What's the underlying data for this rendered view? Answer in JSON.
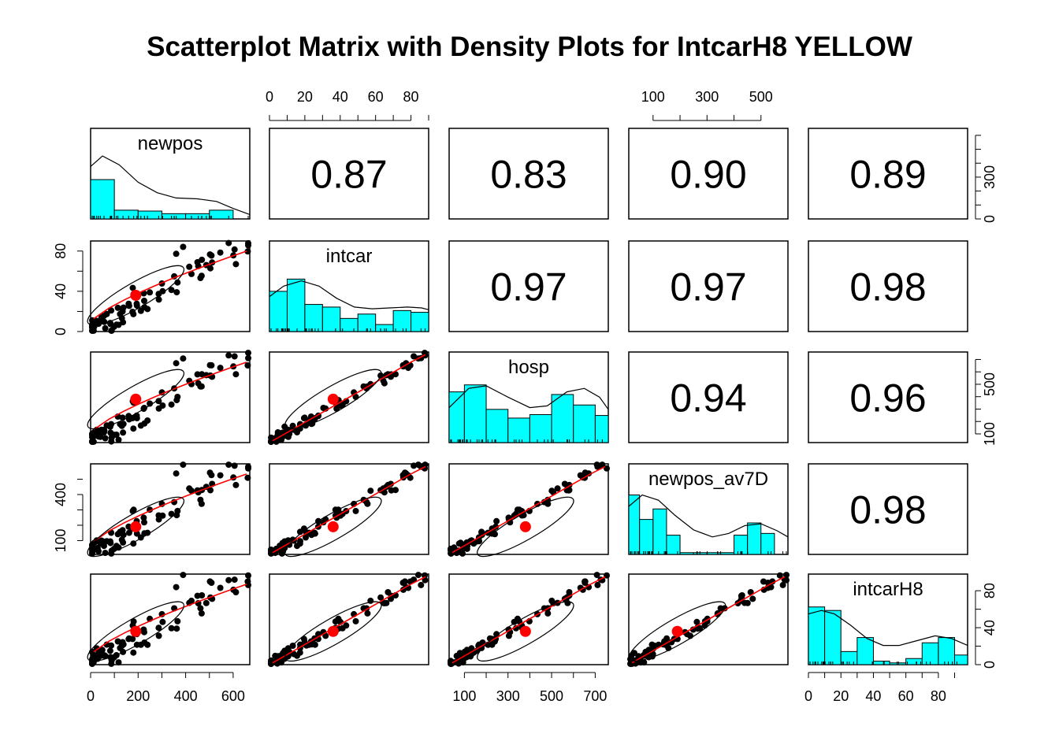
{
  "chart_data": {
    "type": "scatter",
    "title": "Scatterplot Matrix with Density Plots for IntcarH8 YELLOW",
    "variables": [
      "newpos",
      "intcar",
      "hosp",
      "newpos_av7D",
      "intcarH8"
    ],
    "ranges": {
      "newpos": [
        0,
        670
      ],
      "intcar": [
        0,
        90
      ],
      "hosp": [
        30,
        760
      ],
      "newpos_av7D": [
        10,
        600
      ],
      "intcarH8": [
        0,
        98
      ]
    },
    "axis_ticks": {
      "top": [
        {
          "column": 1,
          "variable": "intcar",
          "ticks": [
            0,
            20,
            40,
            60,
            80
          ],
          "minor": [
            10,
            30,
            50,
            70,
            90
          ]
        },
        {
          "column": 3,
          "variable": "newpos_av7D",
          "ticks": [
            100,
            300,
            500
          ],
          "minor": [
            200,
            400
          ]
        }
      ],
      "bottom": [
        {
          "column": 0,
          "variable": "newpos",
          "ticks": [
            0,
            200,
            400,
            600
          ],
          "minor": [
            100,
            300,
            500
          ]
        },
        {
          "column": 2,
          "variable": "hosp",
          "ticks": [
            100,
            300,
            500,
            700
          ],
          "minor": [
            200,
            400,
            600
          ]
        },
        {
          "column": 4,
          "variable": "intcarH8",
          "ticks": [
            0,
            20,
            40,
            60,
            80
          ],
          "minor": [
            10,
            30,
            50,
            70,
            90
          ]
        }
      ],
      "left": [
        {
          "row": 1,
          "variable": "intcar",
          "ticks": [
            0,
            40,
            80
          ],
          "minor": [
            20,
            60
          ]
        },
        {
          "row": 3,
          "variable": "newpos_av7D",
          "ticks": [
            100,
            400
          ],
          "minor": [
            200,
            300,
            500
          ]
        }
      ],
      "right": [
        {
          "row": 0,
          "variable": "newpos",
          "ticks": [
            0,
            300
          ],
          "minor": [
            100,
            200,
            400,
            500,
            600
          ],
          "hist_scale": true
        },
        {
          "row": 2,
          "variable": "hosp",
          "ticks": [
            100,
            500
          ],
          "minor": [
            200,
            300,
            400,
            600,
            700
          ]
        },
        {
          "row": 4,
          "variable": "intcarH8",
          "ticks": [
            0,
            40,
            80
          ],
          "minor": [
            20,
            60
          ]
        }
      ]
    },
    "correlations": [
      {
        "row": 0,
        "col": 1,
        "value": "0.87"
      },
      {
        "row": 0,
        "col": 2,
        "value": "0.83"
      },
      {
        "row": 0,
        "col": 3,
        "value": "0.90"
      },
      {
        "row": 0,
        "col": 4,
        "value": "0.89"
      },
      {
        "row": 1,
        "col": 2,
        "value": "0.97"
      },
      {
        "row": 1,
        "col": 3,
        "value": "0.97"
      },
      {
        "row": 1,
        "col": 4,
        "value": "0.98"
      },
      {
        "row": 2,
        "col": 3,
        "value": "0.94"
      },
      {
        "row": 2,
        "col": 4,
        "value": "0.96"
      },
      {
        "row": 3,
        "col": 4,
        "value": "0.98"
      }
    ],
    "histograms": {
      "newpos": {
        "breaks": [
          0,
          100,
          200,
          300,
          400,
          500,
          600,
          700
        ],
        "counts": [
          0.45,
          0.1,
          0.09,
          0.06,
          0.06,
          0.1,
          0.0
        ],
        "density": [
          [
            0,
            0.6
          ],
          [
            50,
            0.72
          ],
          [
            120,
            0.62
          ],
          [
            200,
            0.42
          ],
          [
            280,
            0.3
          ],
          [
            360,
            0.24
          ],
          [
            450,
            0.23
          ],
          [
            530,
            0.2
          ],
          [
            600,
            0.12
          ],
          [
            670,
            0.05
          ]
        ]
      },
      "intcar": {
        "breaks": [
          0,
          10,
          20,
          30,
          40,
          50,
          60,
          70,
          80,
          90
        ],
        "counts": [
          0.46,
          0.6,
          0.31,
          0.28,
          0.15,
          0.2,
          0.08,
          0.24,
          0.22
        ],
        "density": [
          [
            0,
            0.4
          ],
          [
            8,
            0.52
          ],
          [
            18,
            0.58
          ],
          [
            28,
            0.52
          ],
          [
            38,
            0.38
          ],
          [
            48,
            0.28
          ],
          [
            58,
            0.26
          ],
          [
            68,
            0.27
          ],
          [
            78,
            0.28
          ],
          [
            86,
            0.27
          ],
          [
            90,
            0.25
          ]
        ]
      },
      "hosp": {
        "breaks": [
          0,
          100,
          200,
          300,
          400,
          500,
          600,
          700,
          800
        ],
        "counts": [
          0.58,
          0.66,
          0.38,
          0.28,
          0.32,
          0.55,
          0.43,
          0.31
        ],
        "density": [
          [
            30,
            0.4
          ],
          [
            120,
            0.62
          ],
          [
            200,
            0.65
          ],
          [
            300,
            0.52
          ],
          [
            400,
            0.4
          ],
          [
            480,
            0.42
          ],
          [
            570,
            0.58
          ],
          [
            650,
            0.62
          ],
          [
            720,
            0.52
          ],
          [
            760,
            0.38
          ]
        ]
      },
      "newpos_av7D": {
        "breaks": [
          0,
          50,
          100,
          150,
          200,
          250,
          300,
          350,
          400,
          450,
          500,
          550,
          600
        ],
        "counts": [
          0.68,
          0.4,
          0.52,
          0.22,
          0.02,
          0.02,
          0.02,
          0.02,
          0.22,
          0.36,
          0.24,
          0.0
        ],
        "density": [
          [
            10,
            0.55
          ],
          [
            60,
            0.68
          ],
          [
            120,
            0.62
          ],
          [
            180,
            0.45
          ],
          [
            250,
            0.28
          ],
          [
            320,
            0.2
          ],
          [
            380,
            0.24
          ],
          [
            440,
            0.33
          ],
          [
            500,
            0.35
          ],
          [
            560,
            0.27
          ],
          [
            600,
            0.2
          ]
        ]
      },
      "intcarH8": {
        "breaks": [
          0,
          10,
          20,
          30,
          40,
          50,
          60,
          70,
          80,
          90,
          100
        ],
        "counts": [
          0.66,
          0.62,
          0.15,
          0.31,
          0.04,
          0.02,
          0.07,
          0.25,
          0.31,
          0.11
        ],
        "density": [
          [
            0,
            0.58
          ],
          [
            8,
            0.62
          ],
          [
            16,
            0.58
          ],
          [
            26,
            0.45
          ],
          [
            36,
            0.3
          ],
          [
            46,
            0.22
          ],
          [
            56,
            0.22
          ],
          [
            66,
            0.27
          ],
          [
            78,
            0.33
          ],
          [
            88,
            0.3
          ],
          [
            98,
            0.22
          ]
        ]
      }
    },
    "fitted_point": {
      "newpos": 190,
      "intcar": 36,
      "hosp": 380,
      "newpos_av7D": 190,
      "intcarH8": 36
    },
    "point_color": "#000000",
    "fit_color": "#ff0000",
    "hist_color": "#00ffff"
  }
}
